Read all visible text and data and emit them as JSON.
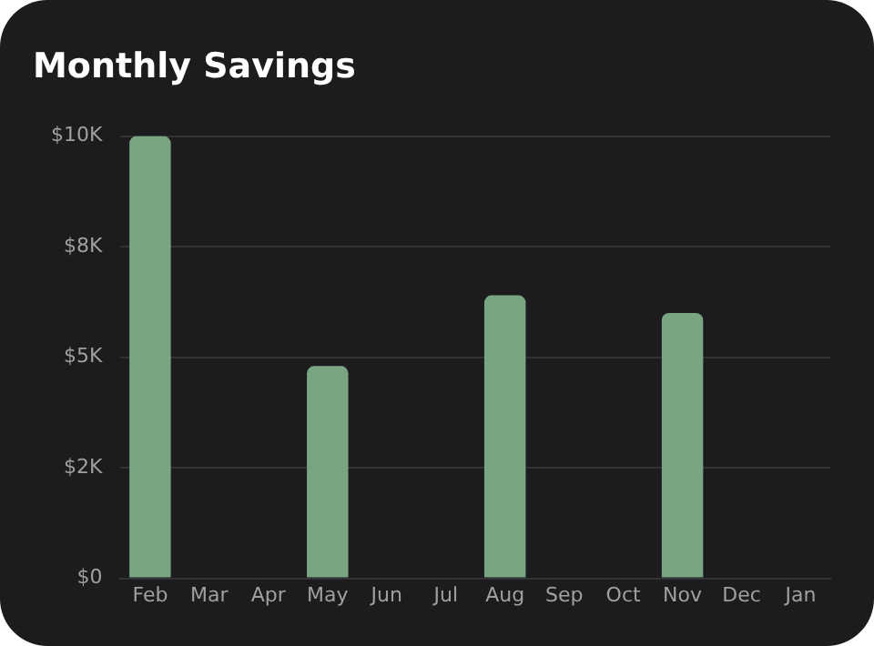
{
  "chart_data": {
    "type": "bar",
    "title": "Monthly Savings",
    "categories": [
      "Feb",
      "Mar",
      "Apr",
      "May",
      "Jun",
      "Jul",
      "Aug",
      "Sep",
      "Oct",
      "Nov",
      "Dec",
      "Jan"
    ],
    "values": [
      10000,
      0,
      0,
      4800,
      0,
      0,
      6400,
      0,
      0,
      6000,
      0,
      0
    ],
    "color": "#7aa582",
    "ylim": [
      0,
      10000
    ],
    "yticks": [
      {
        "value": 0,
        "label": "$0"
      },
      {
        "value": 2500,
        "label": "$2K"
      },
      {
        "value": 5000,
        "label": "$5K"
      },
      {
        "value": 7500,
        "label": "$8K"
      },
      {
        "value": 10000,
        "label": "$10K"
      }
    ],
    "grid": "y"
  }
}
